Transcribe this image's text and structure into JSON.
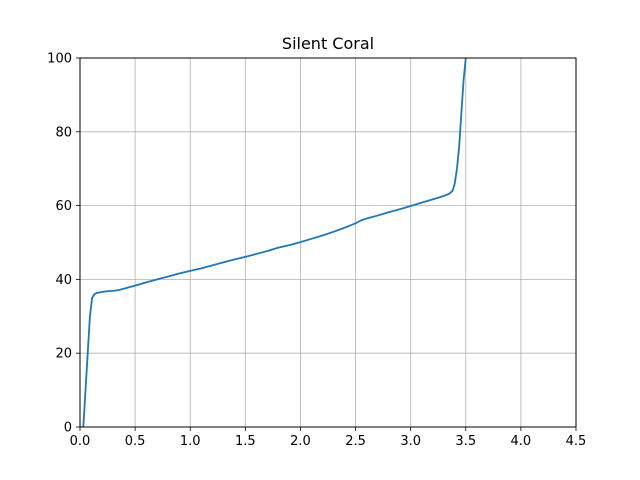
{
  "chart_data": {
    "type": "line",
    "title": "Silent Coral",
    "xlabel": "",
    "ylabel": "",
    "xlim": [
      0,
      4.5
    ],
    "ylim": [
      0,
      100
    ],
    "grid": true,
    "line_color": "#1f77b4",
    "x_ticks": [
      0.0,
      0.5,
      1.0,
      1.5,
      2.0,
      2.5,
      3.0,
      3.5,
      4.0,
      4.5
    ],
    "x_tick_labels": [
      "0.0",
      "0.5",
      "1.0",
      "1.5",
      "2.0",
      "2.5",
      "3.0",
      "3.5",
      "4.0",
      "4.5"
    ],
    "y_ticks": [
      0,
      20,
      40,
      60,
      80,
      100
    ],
    "y_tick_labels": [
      "0",
      "20",
      "40",
      "60",
      "80",
      "100"
    ],
    "series": [
      {
        "x": [
          0.03,
          0.05,
          0.07,
          0.09,
          0.11,
          0.13,
          0.15,
          0.2,
          0.25,
          0.3,
          0.35,
          0.4,
          0.5,
          0.6,
          0.7,
          0.8,
          0.9,
          1.0,
          1.1,
          1.2,
          1.3,
          1.4,
          1.5,
          1.6,
          1.7,
          1.8,
          1.9,
          2.0,
          2.1,
          2.2,
          2.3,
          2.4,
          2.5,
          2.55,
          2.6,
          2.7,
          2.8,
          2.9,
          3.0,
          3.1,
          3.2,
          3.3,
          3.35,
          3.38,
          3.4,
          3.42,
          3.44,
          3.46,
          3.48,
          3.5
        ],
        "y": [
          0,
          10,
          20,
          30,
          35,
          36,
          36.3,
          36.6,
          36.8,
          36.9,
          37.1,
          37.5,
          38.3,
          39.2,
          40.0,
          40.8,
          41.6,
          42.3,
          43.0,
          43.8,
          44.6,
          45.4,
          46.1,
          46.9,
          47.7,
          48.6,
          49.3,
          50.1,
          51.0,
          51.9,
          52.9,
          54.0,
          55.2,
          56.0,
          56.5,
          57.3,
          58.2,
          59.0,
          59.9,
          60.8,
          61.7,
          62.6,
          63.2,
          64.0,
          66.0,
          70.0,
          76.0,
          85.0,
          94.0,
          100.0
        ]
      }
    ]
  }
}
